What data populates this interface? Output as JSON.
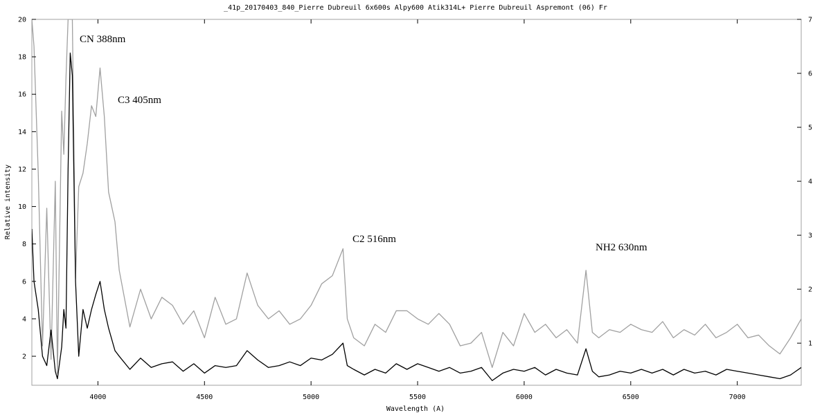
{
  "chart_data": {
    "type": "line",
    "title": "_41p_20170403_840_Pierre Dubreuil  6x600s   Alpy600  Atik314L+   Pierre Dubreuil   Aspremont (06) Fr",
    "xlabel": "Wavelength (A)",
    "ylabel": "Relative intensity",
    "annotations": [
      "CN 388nm",
      "C3 405nm",
      "C2 516nm",
      "NH2  630nm"
    ],
    "x": [
      3690,
      3700,
      3720,
      3740,
      3760,
      3780,
      3800,
      3810,
      3830,
      3840,
      3850,
      3860,
      3870,
      3880,
      3895,
      3910,
      3930,
      3950,
      3970,
      3990,
      4010,
      4030,
      4050,
      4080,
      4100,
      4150,
      4200,
      4250,
      4300,
      4350,
      4400,
      4450,
      4500,
      4550,
      4600,
      4650,
      4700,
      4750,
      4800,
      4850,
      4900,
      4950,
      5000,
      5050,
      5100,
      5150,
      5170,
      5200,
      5250,
      5300,
      5350,
      5400,
      5450,
      5500,
      5550,
      5600,
      5650,
      5700,
      5750,
      5800,
      5850,
      5900,
      5950,
      6000,
      6050,
      6100,
      6150,
      6200,
      6250,
      6290,
      6320,
      6350,
      6400,
      6450,
      6500,
      6550,
      6600,
      6650,
      6700,
      6750,
      6800,
      6850,
      6900,
      6950,
      7000,
      7050,
      7100,
      7150,
      7200,
      7250,
      7300
    ],
    "series": [
      {
        "color": "#000000",
        "values": [
          8.8,
          6,
          4.5,
          2,
          1.5,
          3.4,
          1.2,
          0.8,
          2.5,
          4.5,
          3.5,
          12,
          18.2,
          17,
          6,
          2,
          4.5,
          3.5,
          4.5,
          5.3,
          6,
          4.5,
          3.5,
          2.3,
          2,
          1.3,
          1.9,
          1.4,
          1.6,
          1.7,
          1.2,
          1.6,
          1.1,
          1.5,
          1.4,
          1.5,
          2.3,
          1.8,
          1.4,
          1.5,
          1.7,
          1.5,
          1.9,
          1.8,
          2.1,
          2.7,
          1.5,
          1.3,
          1.0,
          1.3,
          1.1,
          1.6,
          1.3,
          1.6,
          1.4,
          1.2,
          1.4,
          1.1,
          1.2,
          1.4,
          0.7,
          1.1,
          1.3,
          1.2,
          1.4,
          1.0,
          1.3,
          1.1,
          1.0,
          2.4,
          1.2,
          0.9,
          1.0,
          1.2,
          1.1,
          1.3,
          1.1,
          1.3,
          1.0,
          1.3,
          1.1,
          1.2,
          1.0,
          1.3,
          1.2,
          1.1,
          1.0,
          0.9,
          0.8,
          1.0,
          1.4
        ]
      },
      {
        "color": "#a0a0a0",
        "axis": "y2",
        "values": [
          7,
          6.5,
          4.15,
          0.95,
          3.5,
          0.7,
          4.0,
          0.44,
          5.3,
          4.5,
          5.9,
          7,
          7,
          7,
          2.2,
          3.9,
          4.15,
          4.7,
          5.4,
          5.2,
          6.1,
          5.2,
          3.8,
          3.25,
          2.35,
          1.3,
          2.0,
          1.45,
          1.85,
          1.7,
          1.35,
          1.6,
          1.1,
          1.85,
          1.35,
          1.45,
          2.3,
          1.7,
          1.45,
          1.6,
          1.35,
          1.45,
          1.7,
          2.1,
          2.25,
          2.75,
          1.45,
          1.1,
          0.95,
          1.35,
          1.2,
          1.6,
          1.6,
          1.45,
          1.35,
          1.55,
          1.35,
          0.95,
          1.0,
          1.2,
          0.55,
          1.2,
          0.95,
          1.55,
          1.2,
          1.35,
          1.1,
          1.25,
          1.0,
          2.35,
          1.2,
          1.1,
          1.25,
          1.2,
          1.35,
          1.25,
          1.2,
          1.4,
          1.1,
          1.25,
          1.15,
          1.35,
          1.1,
          1.2,
          1.35,
          1.1,
          1.15,
          0.95,
          0.8,
          1.1,
          1.45
        ]
      }
    ],
    "xlim": [
      3690,
      7300
    ],
    "xticks": [
      4000,
      4500,
      5000,
      5500,
      6000,
      6500,
      7000
    ],
    "ylim": [
      0.45,
      20
    ],
    "yticks": [
      2,
      4,
      6,
      8,
      10,
      12,
      14,
      16,
      18,
      20
    ],
    "y2lim": [
      0.22,
      7
    ],
    "y2ticks": [
      1,
      2,
      3,
      4,
      5,
      6,
      7
    ]
  }
}
